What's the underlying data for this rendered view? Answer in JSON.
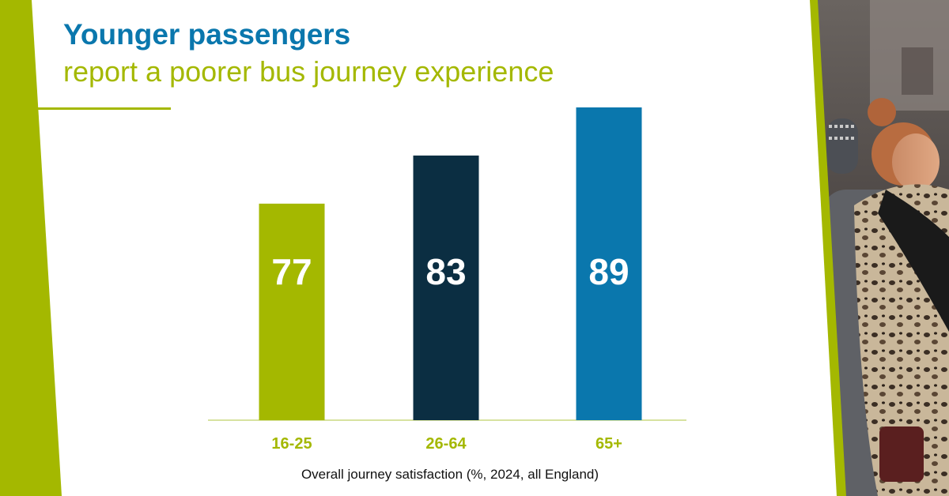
{
  "title": "Younger passengers",
  "subtitle": "report a poorer bus journey experience",
  "colors": {
    "title": "#0a77ad",
    "accent_green": "#a4b800",
    "navy": "#0b2e42",
    "blue": "#0a77ad",
    "label_white": "#ffffff",
    "axis_line": "#d7e2a0",
    "caption": "#111111"
  },
  "photo": {
    "description_icon": "photo-icon"
  },
  "chart_data": {
    "type": "bar",
    "categories": [
      "16-25",
      "26-64",
      "65+"
    ],
    "values": [
      77,
      83,
      89
    ],
    "data_labels": [
      "77",
      "83",
      "89"
    ],
    "bar_colors": [
      "#a4b800",
      "#0b2e42",
      "#0a77ad"
    ],
    "xlabel": "Overall journey satisfaction (%, 2024, all England)",
    "ylabel": "",
    "ylim": [
      50,
      90
    ],
    "grid": false,
    "legend": "none"
  }
}
